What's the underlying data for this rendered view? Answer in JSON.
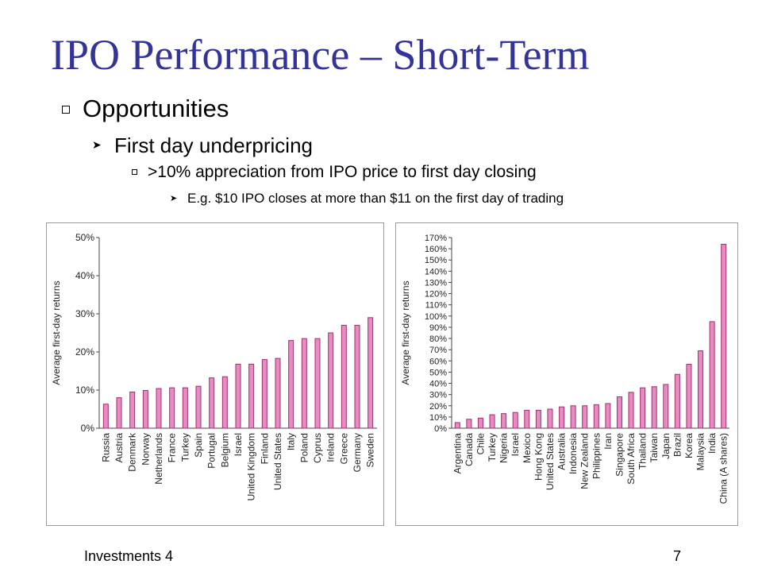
{
  "slide": {
    "title": "IPO Performance – Short-Term",
    "bullets": [
      "Opportunities",
      "First day underpricing",
      ">10% appreciation from IPO price to first day closing",
      "E.g. $10 IPO closes at more than $11 on the first day of trading"
    ],
    "footer_left": "Investments 4",
    "page_number": "7"
  },
  "colors": {
    "title": "#333399",
    "bar_fill": "#e88bc4",
    "bar_stroke": "#a0306a"
  },
  "chart_data": [
    {
      "type": "bar",
      "ylabel": "Average first-day returns",
      "ylim": [
        0,
        50
      ],
      "yticks": [
        "0%",
        "10%",
        "20%",
        "30%",
        "40%",
        "50%"
      ],
      "categories": [
        "Russia",
        "Austria",
        "Denmark",
        "Norway",
        "Netherlands",
        "France",
        "Turkey",
        "Spain",
        "Portugal",
        "Belgium",
        "Israel",
        "United Kingdom",
        "Finland",
        "United States",
        "Italy",
        "Poland",
        "Cyprus",
        "Ireland",
        "Greece",
        "Germany",
        "Sweden"
      ],
      "values": [
        6.3,
        8.0,
        9.5,
        9.9,
        10.4,
        10.6,
        10.6,
        11.0,
        13.2,
        13.5,
        16.8,
        16.8,
        18.0,
        18.3,
        23.0,
        23.5,
        23.5,
        25.0,
        27.0,
        27.0,
        29.0
      ]
    },
    {
      "type": "bar",
      "ylabel": "Average first-day returns",
      "ylim": [
        0,
        170
      ],
      "yticks": [
        "0%",
        "10%",
        "20%",
        "30%",
        "40%",
        "50%",
        "60%",
        "70%",
        "80%",
        "90%",
        "100%",
        "110%",
        "120%",
        "130%",
        "140%",
        "150%",
        "160%",
        "170%"
      ],
      "categories": [
        "Argentina",
        "Canada",
        "Chile",
        "Turkey",
        "Nigeria",
        "Israel",
        "Mexico",
        "Hong Kong",
        "United States",
        "Australia",
        "Indonesia",
        "New Zealand",
        "Philippines",
        "Iran",
        "Singapore",
        "South Africa",
        "Thailand",
        "Taiwan",
        "Japan",
        "Brazil",
        "Korea",
        "Malaysia",
        "India",
        "China (A shares)"
      ],
      "values": [
        5,
        8,
        9,
        12,
        13,
        14,
        16,
        16,
        17,
        19,
        20,
        20,
        21,
        22,
        28,
        32,
        36,
        37,
        39,
        48,
        57,
        69,
        95,
        164
      ]
    }
  ]
}
